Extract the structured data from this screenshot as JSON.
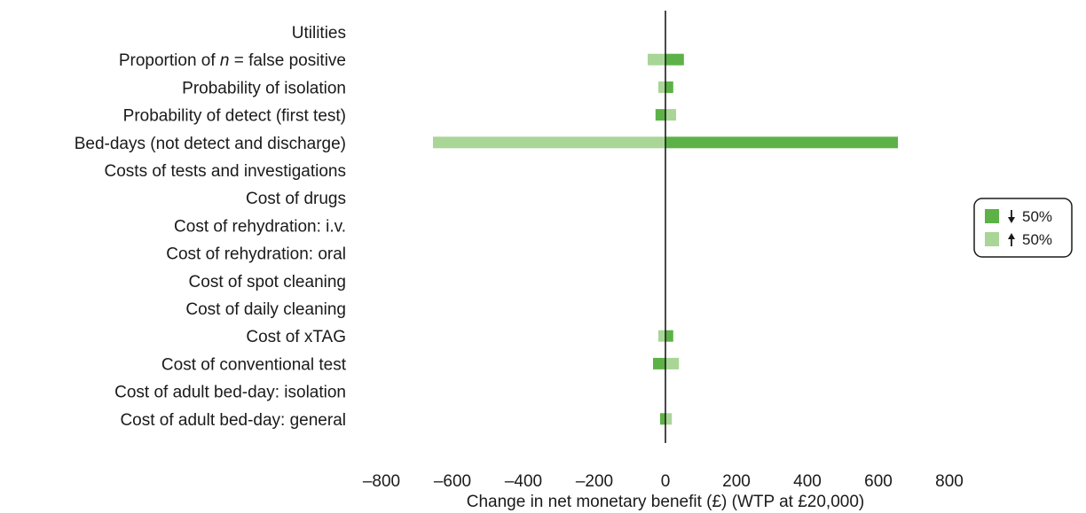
{
  "chart_data": {
    "type": "bar",
    "orientation": "horizontal",
    "categories": [
      "Utilities",
      "Proportion of n = false positive",
      "Probability of isolation",
      "Probability of detect (first test)",
      "Bed-days (not detect and discharge)",
      "Costs of tests and investigations",
      "Cost of drugs",
      "Cost of rehydration: i.v.",
      "Cost of rehydration: oral",
      "Cost of spot cleaning",
      "Cost of daily cleaning",
      "Cost of xTAG",
      "Cost of conventional test",
      "Cost of adult bed-day: isolation",
      "Cost of adult bed-day: general"
    ],
    "category_parts": [
      null,
      {
        "pre": "Proportion of ",
        "italic": "n",
        "post": " = false positive"
      },
      null,
      null,
      null,
      null,
      null,
      null,
      null,
      null,
      null,
      null,
      null,
      null,
      null
    ],
    "series": [
      {
        "name": "↓ 50%",
        "color": "#5cb246",
        "values": [
          0,
          52,
          22,
          -28,
          655,
          0,
          0,
          0,
          0,
          0,
          0,
          22,
          -35,
          0,
          -15
        ]
      },
      {
        "name": "↑ 50%",
        "color": "#a9d597",
        "values": [
          0,
          -50,
          -20,
          30,
          -655,
          0,
          0,
          0,
          0,
          0,
          0,
          -20,
          38,
          0,
          18
        ]
      }
    ],
    "xlabel": "Change in net monetary benefit (£) (WTP at £20,000)",
    "xlim": [
      -800,
      800
    ],
    "xticks": [
      -800,
      -600,
      -400,
      -200,
      0,
      200,
      400,
      600,
      800
    ],
    "xtick_labels": [
      "–800",
      "–600",
      "–400",
      "–200",
      "0",
      "200",
      "400",
      "600",
      "800"
    ],
    "grid": false,
    "legend": {
      "position": "right",
      "items": [
        {
          "arrow": "down",
          "text": "50%",
          "color": "#5cb246"
        },
        {
          "arrow": "up",
          "text": "50%",
          "color": "#a9d597"
        }
      ]
    }
  }
}
